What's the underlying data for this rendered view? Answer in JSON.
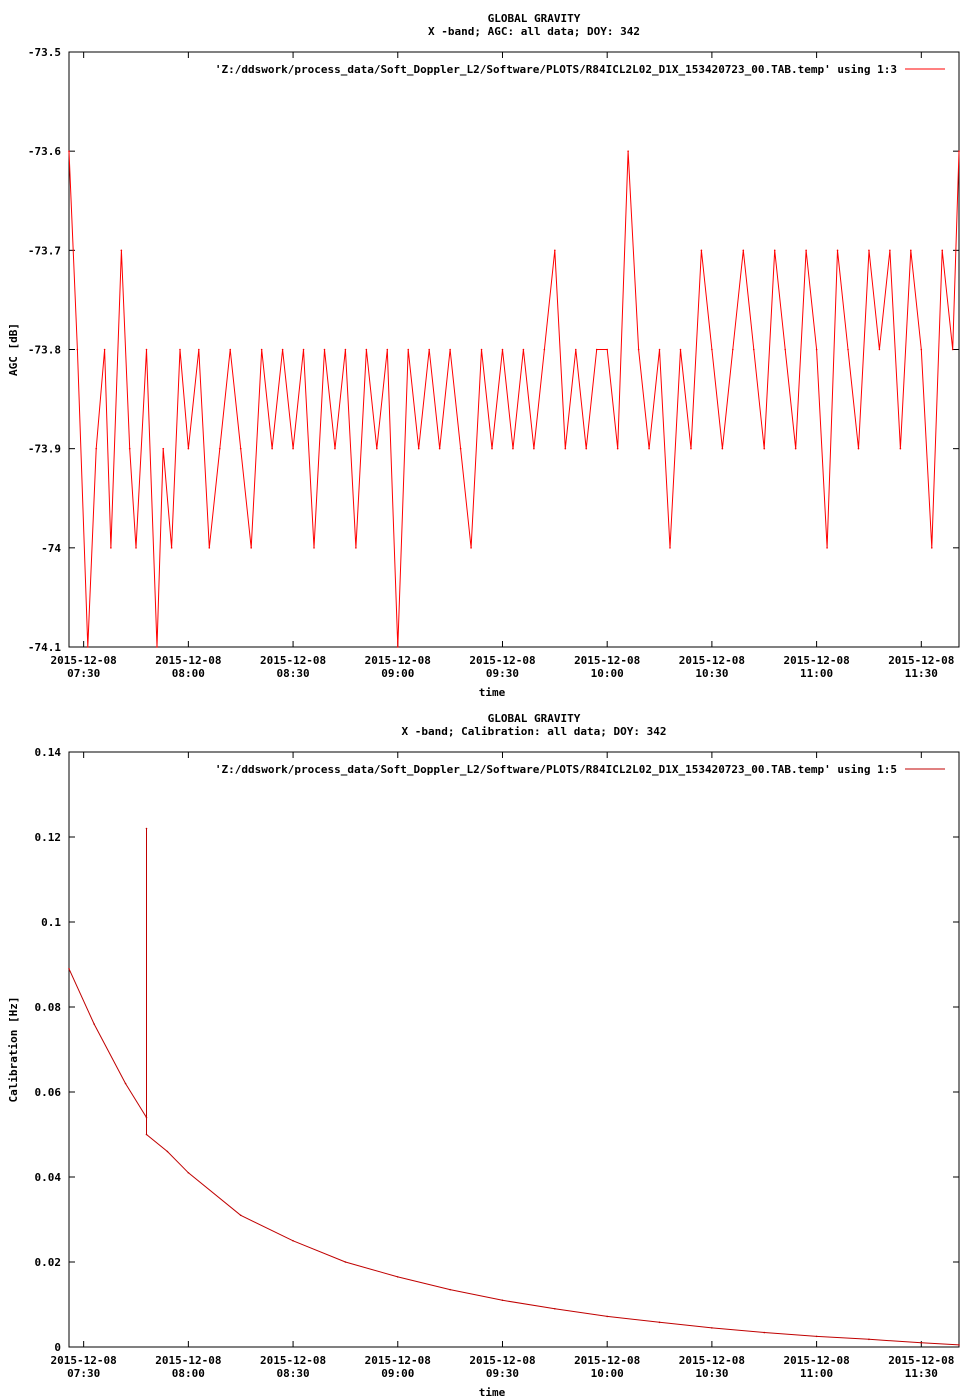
{
  "chart_data": [
    {
      "type": "line",
      "title": "GLOBAL GRAVITY",
      "subtitle": "X -band; AGC: all data; DOY: 342",
      "xlabel": "time",
      "ylabel": "AGC [dB]",
      "legend": "'Z:/ddswork/process_data/Soft_Doppler_L2/Software/PLOTS/R84ICL2L02_D1X_153420723_00.TAB.temp' using 1:3",
      "legend_position": "top-right",
      "color": "#ff0000",
      "xlim": [
        7.43,
        11.68
      ],
      "ylim": [
        -74.1,
        -73.5
      ],
      "yticks": [
        -73.5,
        -73.6,
        -73.7,
        -73.8,
        -73.9,
        -74,
        -74.1
      ],
      "ytick_labels": [
        "-73.5",
        "-73.6",
        "-73.7",
        "-73.8",
        "-73.9",
        "-74",
        "-74.1"
      ],
      "xticks": [
        7.5,
        8.0,
        8.5,
        9.0,
        9.5,
        10.0,
        10.5,
        11.0,
        11.5
      ],
      "xtick_labels": [
        [
          "2015-12-08",
          "07:30"
        ],
        [
          "2015-12-08",
          "08:00"
        ],
        [
          "2015-12-08",
          "08:30"
        ],
        [
          "2015-12-08",
          "09:00"
        ],
        [
          "2015-12-08",
          "09:30"
        ],
        [
          "2015-12-08",
          "10:00"
        ],
        [
          "2015-12-08",
          "10:30"
        ],
        [
          "2015-12-08",
          "11:00"
        ],
        [
          "2015-12-08",
          "11:30"
        ]
      ],
      "series": [
        {
          "x": [
            7.43,
            7.47,
            7.52,
            7.56,
            7.6,
            7.63,
            7.68,
            7.72,
            7.75,
            7.8,
            7.85,
            7.88,
            7.92,
            7.96,
            8.0,
            8.05,
            8.1,
            8.15,
            8.2,
            8.25,
            8.3,
            8.35,
            8.4,
            8.45,
            8.5,
            8.55,
            8.6,
            8.65,
            8.7,
            8.75,
            8.8,
            8.85,
            8.9,
            8.95,
            9.0,
            9.05,
            9.1,
            9.15,
            9.2,
            9.25,
            9.3,
            9.35,
            9.4,
            9.45,
            9.5,
            9.55,
            9.6,
            9.65,
            9.7,
            9.75,
            9.8,
            9.85,
            9.9,
            9.95,
            10.0,
            10.05,
            10.1,
            10.15,
            10.2,
            10.25,
            10.3,
            10.35,
            10.4,
            10.45,
            10.5,
            10.55,
            10.6,
            10.65,
            10.7,
            10.75,
            10.8,
            10.85,
            10.9,
            10.95,
            11.0,
            11.05,
            11.1,
            11.15,
            11.2,
            11.25,
            11.3,
            11.35,
            11.4,
            11.45,
            11.5,
            11.55,
            11.6,
            11.65,
            11.68
          ],
          "y": [
            -73.6,
            -73.8,
            -74.1,
            -73.9,
            -73.8,
            -74.0,
            -73.7,
            -73.9,
            -74.0,
            -73.8,
            -74.1,
            -73.9,
            -74.0,
            -73.8,
            -73.9,
            -73.8,
            -74.0,
            -73.9,
            -73.8,
            -73.9,
            -74.0,
            -73.8,
            -73.9,
            -73.8,
            -73.9,
            -73.8,
            -74.0,
            -73.8,
            -73.9,
            -73.8,
            -74.0,
            -73.8,
            -73.9,
            -73.8,
            -74.1,
            -73.8,
            -73.9,
            -73.8,
            -73.9,
            -73.8,
            -73.9,
            -74.0,
            -73.8,
            -73.9,
            -73.8,
            -73.9,
            -73.8,
            -73.9,
            -73.8,
            -73.7,
            -73.9,
            -73.8,
            -73.9,
            -73.8,
            -73.8,
            -73.9,
            -73.6,
            -73.8,
            -73.9,
            -73.8,
            -74.0,
            -73.8,
            -73.9,
            -73.7,
            -73.8,
            -73.9,
            -73.8,
            -73.7,
            -73.8,
            -73.9,
            -73.7,
            -73.8,
            -73.9,
            -73.7,
            -73.8,
            -74.0,
            -73.7,
            -73.8,
            -73.9,
            -73.7,
            -73.8,
            -73.7,
            -73.9,
            -73.7,
            -73.8,
            -74.0,
            -73.7,
            -73.8,
            -73.6
          ]
        }
      ]
    },
    {
      "type": "line",
      "title": "GLOBAL GRAVITY",
      "subtitle": "X -band; Calibration: all data; DOY: 342",
      "xlabel": "time",
      "ylabel": "Calibration [Hz]",
      "legend": "'Z:/ddswork/process_data/Soft_Doppler_L2/Software/PLOTS/R84ICL2L02_D1X_153420723_00.TAB.temp' using 1:5",
      "legend_position": "top-right",
      "color": "#c00000",
      "xlim": [
        7.43,
        11.68
      ],
      "ylim": [
        0,
        0.14
      ],
      "yticks": [
        0,
        0.02,
        0.04,
        0.06,
        0.08,
        0.1,
        0.12,
        0.14
      ],
      "ytick_labels": [
        "0",
        "0.02",
        "0.04",
        "0.06",
        "0.08",
        "0.1",
        "0.12",
        "0.14"
      ],
      "xticks": [
        7.5,
        8.0,
        8.5,
        9.0,
        9.5,
        10.0,
        10.5,
        11.0,
        11.5
      ],
      "xtick_labels": [
        [
          "2015-12-08",
          "07:30"
        ],
        [
          "2015-12-08",
          "08:00"
        ],
        [
          "2015-12-08",
          "08:30"
        ],
        [
          "2015-12-08",
          "09:00"
        ],
        [
          "2015-12-08",
          "09:30"
        ],
        [
          "2015-12-08",
          "10:00"
        ],
        [
          "2015-12-08",
          "10:30"
        ],
        [
          "2015-12-08",
          "11:00"
        ],
        [
          "2015-12-08",
          "11:30"
        ]
      ],
      "series": [
        {
          "x": [
            7.43,
            7.55,
            7.7,
            7.8,
            7.8,
            7.8,
            7.9,
            8.0,
            8.25,
            8.5,
            8.75,
            9.0,
            9.25,
            9.5,
            9.75,
            10.0,
            10.25,
            10.5,
            10.75,
            11.0,
            11.25,
            11.5,
            11.68
          ],
          "y": [
            0.089,
            0.076,
            0.062,
            0.054,
            0.122,
            0.05,
            0.046,
            0.041,
            0.031,
            0.025,
            0.02,
            0.0165,
            0.0135,
            0.011,
            0.009,
            0.0072,
            0.0058,
            0.0045,
            0.0034,
            0.0025,
            0.0018,
            0.001,
            0.0005
          ]
        }
      ]
    }
  ]
}
